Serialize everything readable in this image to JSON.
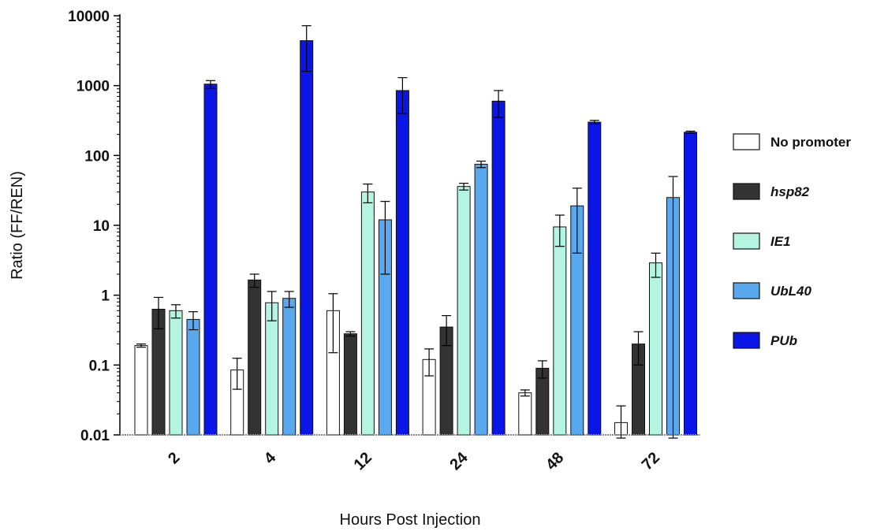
{
  "chart_data": {
    "type": "bar",
    "title": "",
    "xlabel": "Hours Post Injection",
    "ylabel": "Ratio (FF/REN)",
    "yscale": "log",
    "ylim": [
      0.01,
      10000
    ],
    "yticks": [
      "0.01",
      "0.1",
      "1",
      "10",
      "100",
      "1000",
      "10000"
    ],
    "categories": [
      "2",
      "4",
      "12",
      "24",
      "48",
      "72"
    ],
    "grid": false,
    "legend_position": "right",
    "error_bars": true,
    "series": [
      {
        "name": "No promoter",
        "italic": false,
        "color": "#ffffff",
        "values": [
          0.19,
          0.085,
          0.6,
          0.12,
          0.04,
          0.015
        ],
        "error": [
          0.01,
          0.04,
          0.45,
          0.05,
          0.004,
          0.011
        ]
      },
      {
        "name": "hsp82",
        "italic": true,
        "color": "#333333",
        "values": [
          0.63,
          1.65,
          0.28,
          0.35,
          0.09,
          0.2
        ],
        "error": [
          0.3,
          0.35,
          0.02,
          0.16,
          0.025,
          0.1
        ]
      },
      {
        "name": "IE1",
        "italic": true,
        "color": "#b3f5e0",
        "values": [
          0.6,
          0.78,
          30,
          36,
          9.5,
          2.9
        ],
        "error": [
          0.13,
          0.35,
          9,
          4,
          4.5,
          1.1
        ]
      },
      {
        "name": "UbL40",
        "italic": true,
        "color": "#5aa9ee",
        "values": [
          0.45,
          0.9,
          12,
          75,
          19,
          25
        ],
        "error": [
          0.13,
          0.23,
          10,
          8,
          15,
          25
        ]
      },
      {
        "name": "PUb",
        "italic": true,
        "color": "#0a16e6",
        "values": [
          1050,
          4400,
          850,
          600,
          300,
          215
        ],
        "error": [
          130,
          2800,
          450,
          250,
          18,
          8
        ]
      }
    ]
  }
}
